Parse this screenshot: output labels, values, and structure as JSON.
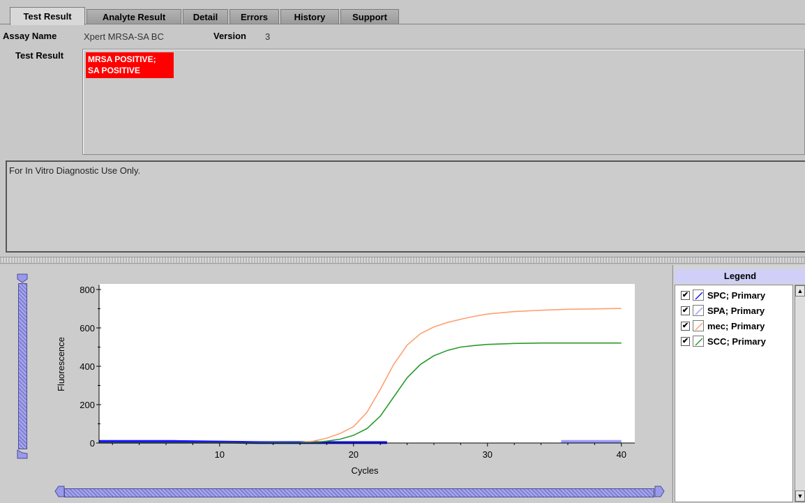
{
  "tabs": [
    "Test Result",
    "Analyte Result",
    "Detail",
    "Errors",
    "History",
    "Support"
  ],
  "active_tab": "Test Result",
  "assay": {
    "label": "Assay Name",
    "value": "Xpert MRSA-SA BC",
    "version_label": "Version",
    "version_value": "3"
  },
  "test_result": {
    "label": "Test Result",
    "line1": "MRSA POSITIVE;",
    "line2": "SA POSITIVE",
    "badge_color": "#ff0000"
  },
  "diagnostic_note": "For In Vitro Diagnostic Use Only.",
  "legend": {
    "title": "Legend",
    "items": [
      {
        "name": "SPC; Primary",
        "color": "#1a1aff",
        "checked": true
      },
      {
        "name": "SPA; Primary",
        "color": "#9a9aff",
        "checked": true
      },
      {
        "name": "mec; Primary",
        "color": "#ff9f70",
        "checked": true
      },
      {
        "name": "SCC; Primary",
        "color": "#2a9a2a",
        "checked": true
      }
    ]
  },
  "chart_data": {
    "type": "line",
    "xlabel": "Cycles",
    "ylabel": "Fluorescence",
    "xlim": [
      1,
      41
    ],
    "ylim": [
      0,
      800
    ],
    "xticks": [
      "10",
      "20",
      "30",
      "40"
    ],
    "yticks": [
      "0",
      "200",
      "400",
      "600",
      "800"
    ],
    "grid": false,
    "legend_placement": "right",
    "series": [
      {
        "name": "SPC; Primary",
        "color": "#1a1aff",
        "x": [
          1,
          6.5,
          13,
          22.5
        ],
        "y": [
          8,
          8,
          2,
          2
        ]
      },
      {
        "name": "SPA; Primary",
        "color": "#9a9aff",
        "x": [
          35.5,
          40
        ],
        "y": [
          8,
          8
        ]
      },
      {
        "name": "mec; Primary",
        "color": "#ff9f70",
        "x": [
          1,
          10,
          16,
          17,
          18,
          19,
          20,
          21,
          22,
          23,
          24,
          25,
          26,
          27,
          28,
          29,
          30,
          32,
          34,
          36,
          38,
          40
        ],
        "y": [
          0,
          0,
          3,
          10,
          25,
          50,
          85,
          160,
          280,
          410,
          510,
          570,
          605,
          628,
          645,
          660,
          672,
          685,
          692,
          697,
          699,
          702
        ]
      },
      {
        "name": "SCC; Primary",
        "color": "#2a9a2a",
        "x": [
          1,
          10,
          17,
          18,
          19,
          20,
          21,
          22,
          23,
          24,
          25,
          26,
          27,
          28,
          29,
          30,
          32,
          34,
          36,
          38,
          40
        ],
        "y": [
          0,
          0,
          3,
          10,
          20,
          40,
          75,
          140,
          240,
          340,
          410,
          455,
          482,
          500,
          508,
          514,
          519,
          521,
          521,
          521,
          521
        ]
      }
    ]
  }
}
